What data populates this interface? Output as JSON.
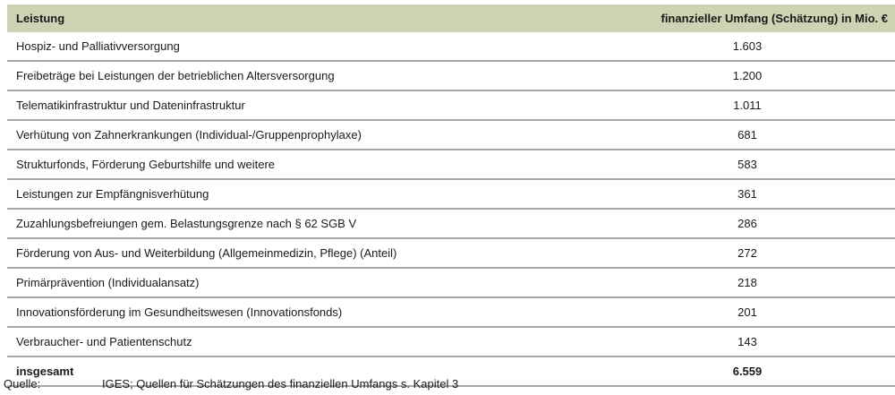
{
  "table": {
    "headers": [
      "Leistung",
      "finanzieller Umfang (Schätzung) in Mio. €"
    ],
    "rows": [
      [
        "Hospiz- und Palliativversorgung",
        "1.603"
      ],
      [
        "Freibeträge bei Leistungen der betrieblichen Altersversorgung",
        "1.200"
      ],
      [
        "Telematikinfrastruktur und Dateninfrastruktur",
        "1.011"
      ],
      [
        "Verhütung von Zahnerkrankungen (Individual-/Gruppenprophylaxe)",
        "681"
      ],
      [
        "Strukturfonds, Förderung Geburtshilfe und weitere",
        "583"
      ],
      [
        "Leistungen zur Empfängnisverhütung",
        "361"
      ],
      [
        "Zuzahlungsbefreiungen gem. Belastungsgrenze nach § 62 SGB V",
        "286"
      ],
      [
        "Förderung von Aus- und Weiterbildung (Allgemeinmedizin, Pflege) (Anteil)",
        "272"
      ],
      [
        "Primärprävention (Individualansatz)",
        "218"
      ],
      [
        "Innovationsförderung im Gesundheitswesen (Innovationsfonds)",
        "201"
      ],
      [
        "Verbraucher- und Patientenschutz",
        "143"
      ]
    ],
    "total": [
      "insgesamt",
      "6.559"
    ],
    "header_color": "#cdd3b3"
  },
  "footer": {
    "label": "Quelle:",
    "text": "IGES; Quellen für Schätzungen des finanziellen Umfangs s. Kapitel 3"
  }
}
